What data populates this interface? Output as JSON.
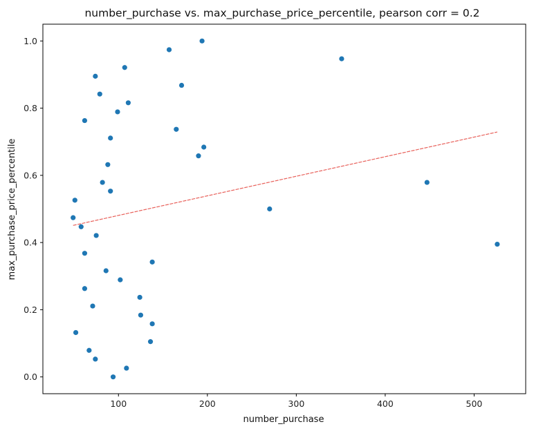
{
  "chart_data": {
    "type": "scatter",
    "title": "number_purchase vs. max_purchase_price_percentile, pearson corr = 0.2",
    "xlabel": "number_purchase",
    "ylabel": "max_purchase_price_percentile",
    "xlim": [
      15,
      558
    ],
    "ylim": [
      -0.05,
      1.05
    ],
    "xticks": [
      100,
      200,
      300,
      400,
      500
    ],
    "yticks": [
      0.0,
      0.2,
      0.4,
      0.6,
      0.8,
      1.0
    ],
    "xtick_labels": [
      "100",
      "200",
      "300",
      "400",
      "500"
    ],
    "ytick_labels": [
      "0.0",
      "0.2",
      "0.4",
      "0.6",
      "0.8",
      "1.0"
    ],
    "grid": false,
    "legend": "none",
    "colors": {
      "points": "#1f77b4",
      "trend": "#e8605a"
    },
    "points": [
      {
        "x": 49,
        "y": 0.474
      },
      {
        "x": 51,
        "y": 0.526
      },
      {
        "x": 52,
        "y": 0.132
      },
      {
        "x": 58,
        "y": 0.447
      },
      {
        "x": 62,
        "y": 0.763
      },
      {
        "x": 62,
        "y": 0.368
      },
      {
        "x": 62,
        "y": 0.263
      },
      {
        "x": 67,
        "y": 0.079
      },
      {
        "x": 71,
        "y": 0.211
      },
      {
        "x": 74,
        "y": 0.895
      },
      {
        "x": 74,
        "y": 0.053
      },
      {
        "x": 75,
        "y": 0.421
      },
      {
        "x": 79,
        "y": 0.842
      },
      {
        "x": 82,
        "y": 0.579
      },
      {
        "x": 86,
        "y": 0.316
      },
      {
        "x": 88,
        "y": 0.632
      },
      {
        "x": 91,
        "y": 0.711
      },
      {
        "x": 91,
        "y": 0.553
      },
      {
        "x": 94,
        "y": 0.0
      },
      {
        "x": 99,
        "y": 0.789
      },
      {
        "x": 102,
        "y": 0.289
      },
      {
        "x": 107,
        "y": 0.921
      },
      {
        "x": 109,
        "y": 0.026
      },
      {
        "x": 111,
        "y": 0.816
      },
      {
        "x": 124,
        "y": 0.237
      },
      {
        "x": 125,
        "y": 0.184
      },
      {
        "x": 136,
        "y": 0.105
      },
      {
        "x": 138,
        "y": 0.342
      },
      {
        "x": 138,
        "y": 0.158
      },
      {
        "x": 157,
        "y": 0.974
      },
      {
        "x": 165,
        "y": 0.737
      },
      {
        "x": 171,
        "y": 0.868
      },
      {
        "x": 190,
        "y": 0.658
      },
      {
        "x": 194,
        "y": 1.0
      },
      {
        "x": 196,
        "y": 0.684
      },
      {
        "x": 270,
        "y": 0.5
      },
      {
        "x": 351,
        "y": 0.947
      },
      {
        "x": 447,
        "y": 0.579
      },
      {
        "x": 526,
        "y": 0.395
      }
    ],
    "trendline": {
      "x": [
        49,
        526
      ],
      "y": [
        0.451,
        0.729
      ]
    }
  }
}
